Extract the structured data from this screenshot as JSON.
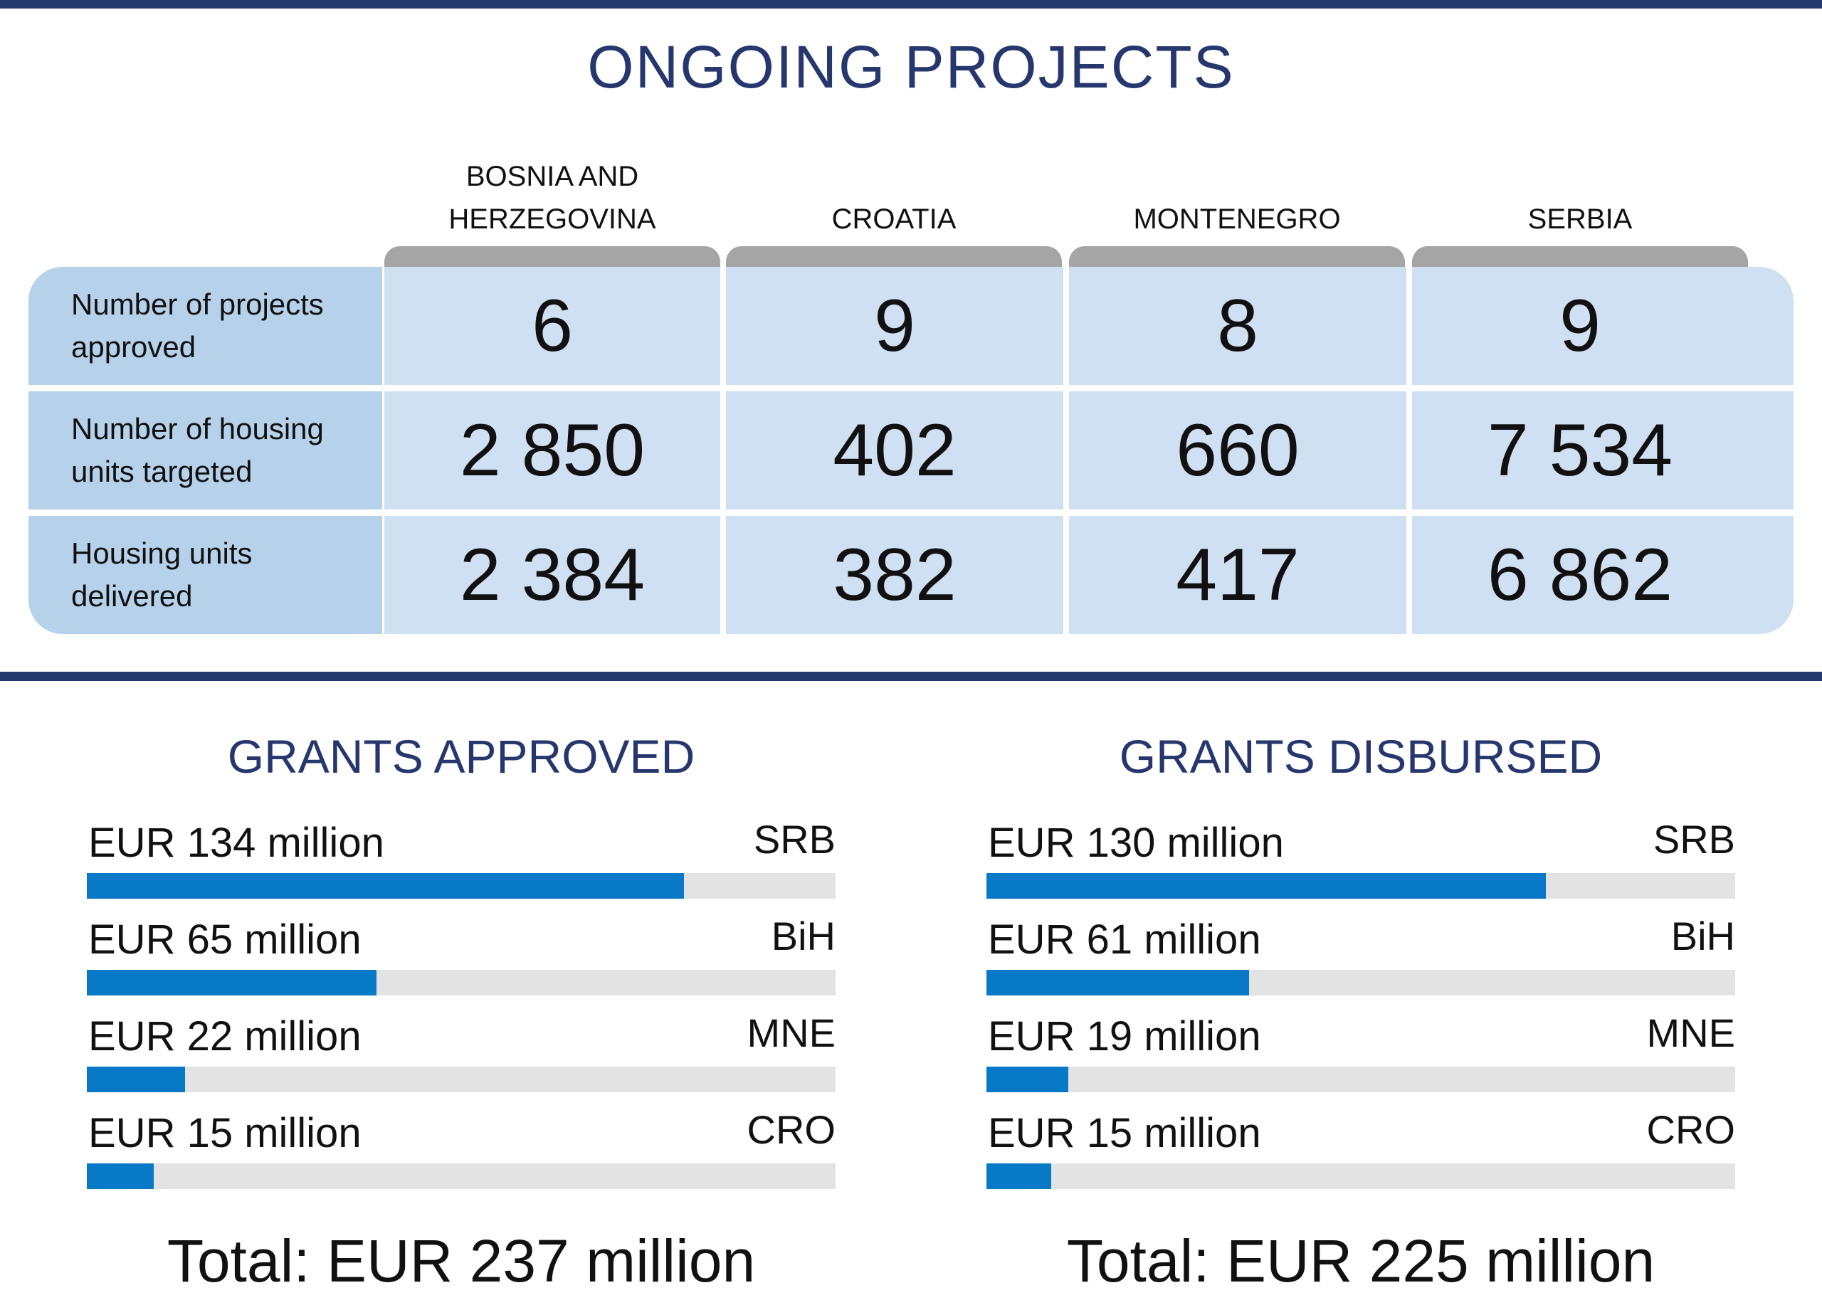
{
  "title": "ONGOING PROJECTS",
  "table": {
    "columns": [
      "BOSNIA AND HERZEGOVINA",
      "CROATIA",
      "MONTENEGRO",
      "SERBIA"
    ],
    "rows": [
      {
        "label": "Number of projects approved",
        "values": [
          "6",
          "9",
          "8",
          "9"
        ]
      },
      {
        "label": "Number of housing units targeted",
        "values": [
          "2 850",
          "402",
          "660",
          "7 534"
        ]
      },
      {
        "label": "Housing units delivered",
        "values": [
          "2 384",
          "382",
          "417",
          "6 862"
        ]
      }
    ]
  },
  "colors": {
    "accent": "#26376e",
    "bar": "#0779c6",
    "track": "#e3e3e3",
    "cell": "#cfe0f2",
    "label_cell": "#b6d2ea",
    "tab": "#a5a5a5"
  },
  "chart_data": [
    {
      "type": "bar",
      "title": "GRANTS APPROVED",
      "unit": "EUR million",
      "categories": [
        "SRB",
        "BiH",
        "MNE",
        "CRO"
      ],
      "values": [
        134,
        65,
        22,
        15
      ],
      "labels": [
        "EUR 134 million",
        "EUR 65 million",
        "EUR 22 million",
        "EUR 15 million"
      ],
      "xlim": [
        0,
        168
      ],
      "total": "Total: EUR 237 million"
    },
    {
      "type": "bar",
      "title": "GRANTS DISBURSED",
      "unit": "EUR million",
      "categories": [
        "SRB",
        "BiH",
        "MNE",
        "CRO"
      ],
      "values": [
        130,
        61,
        19,
        15
      ],
      "labels": [
        "EUR 130 million",
        "EUR 61 million",
        "EUR 19 million",
        "EUR 15 million"
      ],
      "xlim": [
        0,
        174
      ],
      "total": "Total: EUR 225 million"
    }
  ]
}
